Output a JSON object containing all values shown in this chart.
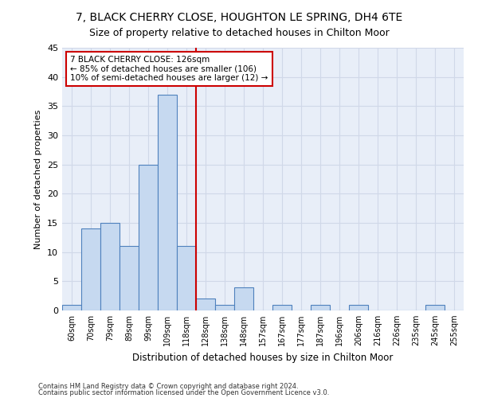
{
  "title": "7, BLACK CHERRY CLOSE, HOUGHTON LE SPRING, DH4 6TE",
  "subtitle": "Size of property relative to detached houses in Chilton Moor",
  "xlabel": "Distribution of detached houses by size in Chilton Moor",
  "ylabel": "Number of detached properties",
  "footnote1": "Contains HM Land Registry data © Crown copyright and database right 2024.",
  "footnote2": "Contains public sector information licensed under the Open Government Licence v3.0.",
  "annotation_line1": "7 BLACK CHERRY CLOSE: 126sqm",
  "annotation_line2": "← 85% of detached houses are smaller (106)",
  "annotation_line3": "10% of semi-detached houses are larger (12) →",
  "bar_categories": [
    "60sqm",
    "70sqm",
    "79sqm",
    "89sqm",
    "99sqm",
    "109sqm",
    "118sqm",
    "128sqm",
    "138sqm",
    "148sqm",
    "157sqm",
    "167sqm",
    "177sqm",
    "187sqm",
    "196sqm",
    "206sqm",
    "216sqm",
    "226sqm",
    "235sqm",
    "245sqm",
    "255sqm"
  ],
  "bar_values": [
    1,
    14,
    15,
    11,
    25,
    37,
    11,
    2,
    1,
    4,
    0,
    1,
    0,
    1,
    0,
    1,
    0,
    0,
    0,
    1,
    0
  ],
  "bar_color": "#c6d9f0",
  "bar_edge_color": "#4f81bd",
  "vline_color": "#cc0000",
  "vline_x": 6.5,
  "annotation_box_color": "#cc0000",
  "ylim": [
    0,
    45
  ],
  "yticks": [
    0,
    5,
    10,
    15,
    20,
    25,
    30,
    35,
    40,
    45
  ],
  "grid_color": "#d0d8e8",
  "bg_color": "#e8eef8",
  "title_fontsize": 10,
  "subtitle_fontsize": 9,
  "figsize": [
    6.0,
    5.0
  ],
  "dpi": 100
}
